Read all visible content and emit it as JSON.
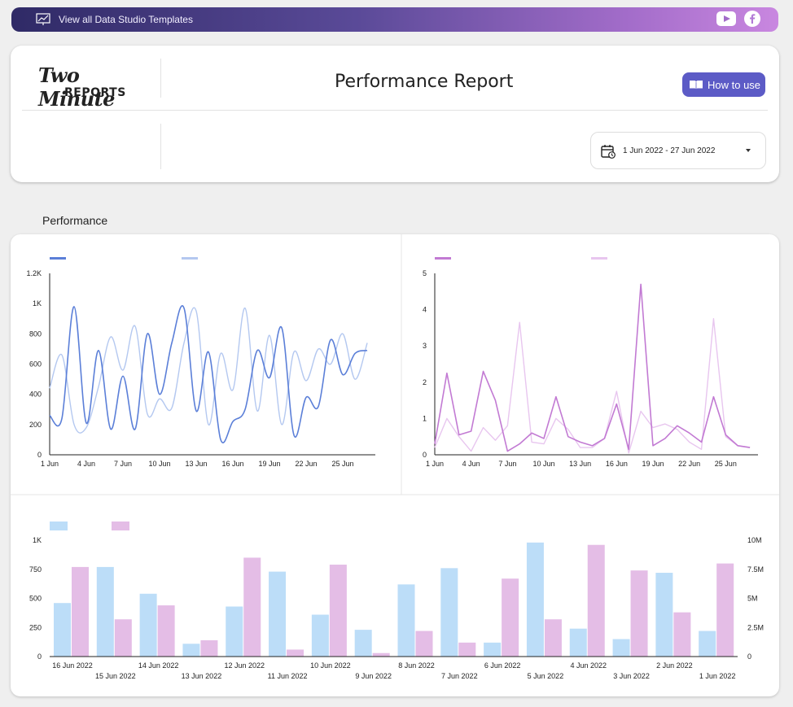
{
  "banner": {
    "text": "View all Data Studio Templates",
    "icons": [
      "presentation-chart-icon",
      "youtube-icon",
      "facebook-icon"
    ]
  },
  "header": {
    "logo_top": "Two Minute",
    "logo_bottom": "REPORTS",
    "title": "Performance Report",
    "how_to_use": "How to use",
    "date_range": "1 Jun 2022 - 27 Jun 2022"
  },
  "section_title": "Performance",
  "colors": {
    "blue_dark": "#5b7fd8",
    "blue_light": "#b4c8f0",
    "purple_dark": "#c27ad3",
    "purple_light": "#e8c6ef",
    "bar_blue": "#bcddf8",
    "bar_purple": "#e4bde6",
    "button": "#5c5bc6"
  },
  "chart_data": [
    {
      "type": "line",
      "title": "",
      "legend": [
        "",
        ""
      ],
      "x_ticks": [
        "1 Jun",
        "4 Jun",
        "7 Jun",
        "10 Jun",
        "13 Jun",
        "16 Jun",
        "19 Jun",
        "22 Jun",
        "25 Jun"
      ],
      "y_ticks": [
        "0",
        "200",
        "400",
        "600",
        "800",
        "1K",
        "1.2K"
      ],
      "ylim": [
        0,
        1200
      ],
      "x_count": 27,
      "series": [
        {
          "name": "",
          "values": [
            260,
            240,
            980,
            210,
            690,
            170,
            520,
            170,
            800,
            400,
            740,
            970,
            290,
            680,
            100,
            220,
            300,
            690,
            510,
            840,
            130,
            380,
            320,
            760,
            530,
            670,
            690
          ]
        },
        {
          "name": "",
          "values": [
            440,
            660,
            200,
            180,
            450,
            780,
            560,
            850,
            270,
            370,
            310,
            740,
            950,
            200,
            670,
            430,
            970,
            290,
            790,
            200,
            680,
            490,
            700,
            600,
            800,
            500,
            740
          ]
        }
      ]
    },
    {
      "type": "line",
      "title": "",
      "legend": [
        "",
        ""
      ],
      "x_ticks": [
        "1 Jun",
        "4 Jun",
        "7 Jun",
        "10 Jun",
        "13 Jun",
        "16 Jun",
        "19 Jun",
        "22 Jun",
        "25 Jun"
      ],
      "y_ticks": [
        "0",
        "1",
        "2",
        "3",
        "4",
        "5"
      ],
      "ylim": [
        0,
        5
      ],
      "x_count": 27,
      "series": [
        {
          "name": "",
          "values": [
            0.3,
            2.25,
            0.55,
            0.65,
            2.3,
            1.5,
            0.1,
            0.3,
            0.6,
            0.45,
            1.6,
            0.5,
            0.35,
            0.25,
            0.45,
            1.4,
            0.15,
            4.7,
            0.25,
            0.45,
            0.8,
            0.6,
            0.35,
            1.6,
            0.55,
            0.25,
            0.2
          ]
        },
        {
          "name": "",
          "values": [
            0.2,
            1.0,
            0.5,
            0.1,
            0.75,
            0.4,
            0.8,
            3.65,
            0.35,
            0.3,
            1.0,
            0.7,
            0.2,
            0.2,
            0.45,
            1.75,
            0.05,
            1.2,
            0.75,
            0.85,
            0.7,
            0.35,
            0.15,
            3.75,
            0.5,
            0.25,
            0.2
          ]
        }
      ]
    },
    {
      "type": "bar",
      "title": "",
      "legend": [
        "",
        ""
      ],
      "categories": [
        "16 Jun 2022",
        "15 Jun 2022",
        "14 Jun 2022",
        "13 Jun 2022",
        "12 Jun 2022",
        "11 Jun 2022",
        "10 Jun 2022",
        "9 Jun 2022",
        "8 Jun 2022",
        "7 Jun 2022",
        "6 Jun 2022",
        "5 Jun 2022",
        "4 Jun 2022",
        "3 Jun 2022",
        "2 Jun 2022",
        "1 Jun 2022"
      ],
      "left_ticks": [
        "0",
        "250",
        "500",
        "750",
        "1K"
      ],
      "right_ticks": [
        "0",
        "2.5M",
        "5M",
        "7.5M",
        "10M"
      ],
      "ylim_left": [
        0,
        1000
      ],
      "ylim_right": [
        0,
        10000000
      ],
      "series": [
        {
          "name": "",
          "axis": "left",
          "values": [
            460,
            770,
            540,
            110,
            430,
            730,
            360,
            230,
            620,
            760,
            120,
            980,
            240,
            150,
            720,
            220
          ]
        },
        {
          "name": "",
          "axis": "right",
          "values": [
            7700000,
            3200000,
            4400000,
            1400000,
            8500000,
            600000,
            7900000,
            300000,
            2200000,
            1200000,
            6700000,
            3200000,
            9600000,
            7400000,
            3800000,
            8000000
          ]
        }
      ]
    }
  ]
}
